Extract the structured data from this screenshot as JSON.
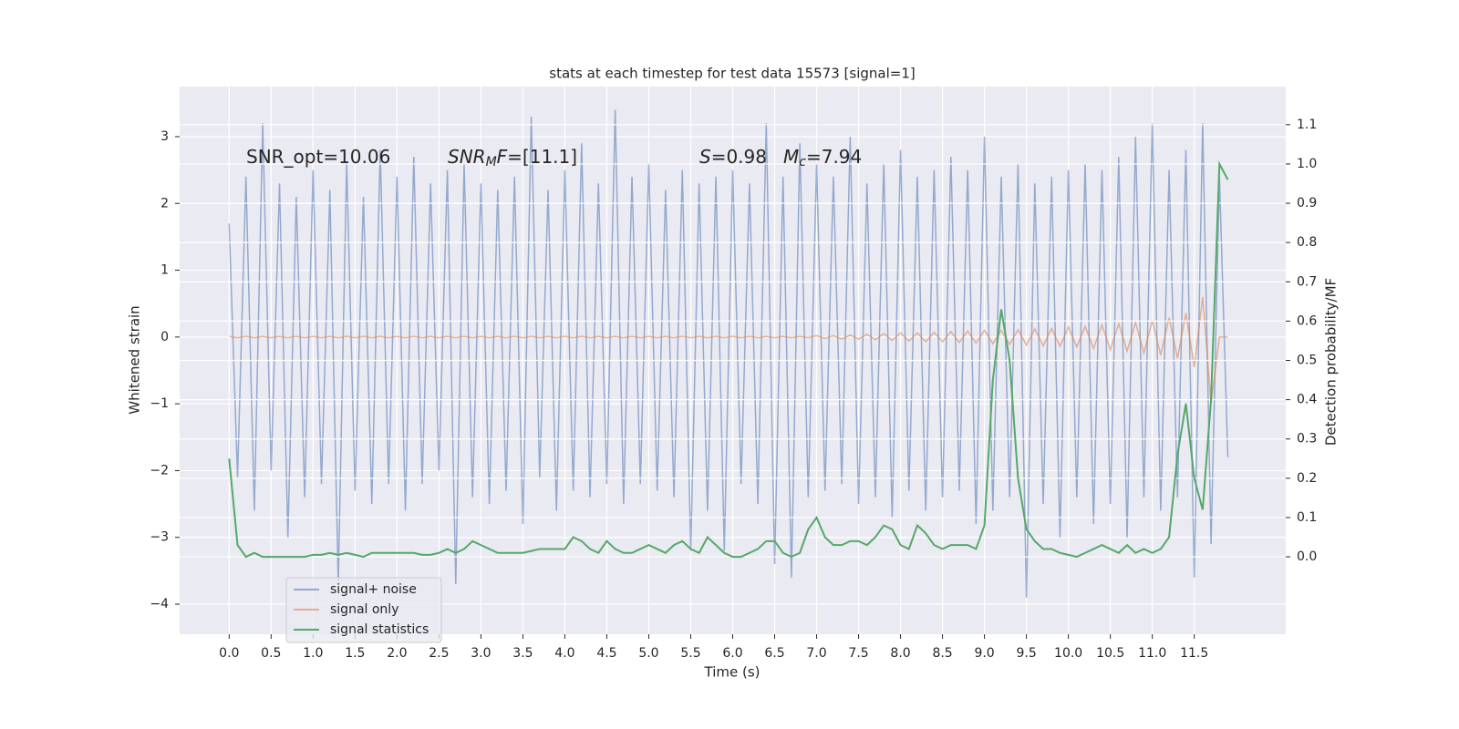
{
  "chart_data": {
    "type": "line",
    "title": "stats at each timestep for test data 15573 [signal=1]",
    "xlabel": "Time (s)",
    "ylabel": "Whitened strain",
    "y2label": "Detection probability/MF",
    "annotations": [
      [
        {
          "text": "SNR_opt=10.06",
          "style": "normal"
        }
      ],
      [
        {
          "text": "SNR",
          "style": "italic"
        },
        {
          "text": "M",
          "style": "sub"
        },
        {
          "text": "F",
          "style": "italic"
        },
        {
          "text": "=[11.1]",
          "style": "normal"
        }
      ],
      [
        {
          "text": "S",
          "style": "italic"
        },
        {
          "text": "=0.98",
          "style": "normal"
        }
      ],
      [
        {
          "text": "M",
          "style": "italic"
        },
        {
          "text": "c",
          "style": "sub"
        },
        {
          "text": "=7.94",
          "style": "normal"
        }
      ]
    ],
    "x": [
      0.0,
      0.1,
      0.2,
      0.3,
      0.4,
      0.5,
      0.6,
      0.7,
      0.8,
      0.9,
      1.0,
      1.1,
      1.2,
      1.3,
      1.4,
      1.5,
      1.6,
      1.7,
      1.8,
      1.9,
      2.0,
      2.1,
      2.2,
      2.3,
      2.4,
      2.5,
      2.6,
      2.7,
      2.8,
      2.9,
      3.0,
      3.1,
      3.2,
      3.3,
      3.4,
      3.5,
      3.6,
      3.7,
      3.8,
      3.9,
      4.0,
      4.1,
      4.2,
      4.3,
      4.4,
      4.5,
      4.6,
      4.7,
      4.8,
      4.9,
      5.0,
      5.1,
      5.2,
      5.3,
      5.4,
      5.5,
      5.6,
      5.7,
      5.8,
      5.9,
      6.0,
      6.1,
      6.2,
      6.3,
      6.4,
      6.5,
      6.6,
      6.7,
      6.8,
      6.9,
      7.0,
      7.1,
      7.2,
      7.3,
      7.4,
      7.5,
      7.6,
      7.7,
      7.8,
      7.9,
      8.0,
      8.1,
      8.2,
      8.3,
      8.4,
      8.5,
      8.6,
      8.7,
      8.8,
      8.9,
      9.0,
      9.1,
      9.2,
      9.3,
      9.4,
      9.5,
      9.6,
      9.7,
      9.8,
      9.9,
      10.0,
      10.1,
      10.2,
      10.3,
      10.4,
      10.5,
      10.6,
      10.7,
      10.8,
      10.9,
      11.0,
      11.1,
      11.2,
      11.3,
      11.4,
      11.5,
      11.6,
      11.7,
      11.8,
      11.9
    ],
    "series": [
      {
        "name": "signal+ noise",
        "color": "#4c72b0",
        "alpha": 0.55,
        "values": [
          1.7,
          -2.1,
          2.4,
          -2.6,
          3.2,
          -2.0,
          2.3,
          -3.0,
          2.1,
          -2.4,
          2.5,
          -2.2,
          2.2,
          -3.7,
          2.6,
          -2.3,
          2.1,
          -2.5,
          2.8,
          -2.2,
          2.4,
          -2.6,
          2.7,
          -2.2,
          2.3,
          -2.0,
          2.5,
          -3.7,
          2.6,
          -2.4,
          2.3,
          -2.5,
          2.2,
          -2.3,
          2.4,
          -2.8,
          3.3,
          -2.1,
          2.2,
          -2.6,
          2.5,
          -2.3,
          2.9,
          -2.4,
          2.3,
          -2.2,
          3.4,
          -2.5,
          2.4,
          -2.2,
          2.6,
          -2.3,
          2.2,
          -2.4,
          2.5,
          -3.2,
          2.3,
          -2.6,
          2.4,
          -3.2,
          2.5,
          -2.2,
          2.3,
          -2.5,
          3.2,
          -3.4,
          2.4,
          -3.6,
          2.9,
          -2.4,
          2.6,
          -2.3,
          2.4,
          -2.2,
          3.0,
          -2.5,
          2.3,
          -2.4,
          2.6,
          -2.7,
          2.8,
          -2.3,
          2.4,
          -2.6,
          2.5,
          -2.4,
          2.7,
          -2.3,
          2.5,
          -2.8,
          3.0,
          -2.6,
          2.4,
          -2.4,
          2.6,
          -3.9,
          2.3,
          -2.5,
          2.4,
          -3.0,
          2.5,
          -2.4,
          2.6,
          -2.8,
          2.5,
          -2.5,
          2.7,
          -3.0,
          3.0,
          -2.4,
          3.2,
          -2.6,
          2.5,
          -2.4,
          2.8,
          -3.6,
          3.2,
          -3.1,
          2.4,
          -1.8
        ]
      },
      {
        "name": "signal only",
        "color": "#dd8452",
        "alpha": 0.6,
        "values": [
          0.01,
          -0.01,
          0.01,
          -0.01,
          0.01,
          -0.01,
          0.01,
          -0.01,
          0.01,
          -0.01,
          0.01,
          -0.01,
          0.01,
          -0.01,
          0.01,
          -0.01,
          0.01,
          -0.01,
          0.01,
          -0.01,
          0.01,
          -0.01,
          0.01,
          -0.01,
          0.01,
          -0.01,
          0.01,
          -0.01,
          0.01,
          -0.01,
          0.01,
          -0.01,
          0.01,
          -0.01,
          0.01,
          -0.01,
          0.01,
          -0.01,
          0.01,
          -0.01,
          0.01,
          -0.01,
          0.01,
          -0.01,
          0.01,
          -0.01,
          0.01,
          -0.01,
          0.01,
          -0.01,
          0.01,
          -0.01,
          0.01,
          -0.01,
          0.01,
          -0.01,
          0.01,
          -0.01,
          0.01,
          -0.01,
          0.01,
          -0.01,
          0.01,
          -0.01,
          0.01,
          -0.01,
          0.01,
          -0.01,
          0.01,
          -0.01,
          0.02,
          -0.02,
          0.02,
          -0.03,
          0.03,
          -0.03,
          0.04,
          -0.04,
          0.05,
          -0.05,
          0.06,
          -0.06,
          0.06,
          -0.07,
          0.07,
          -0.07,
          0.08,
          -0.08,
          0.09,
          -0.09,
          0.1,
          -0.1,
          0.1,
          -0.11,
          0.11,
          -0.12,
          0.12,
          -0.13,
          0.13,
          -0.14,
          0.15,
          -0.15,
          0.16,
          -0.17,
          0.18,
          -0.19,
          0.2,
          -0.21,
          0.22,
          -0.24,
          0.25,
          -0.27,
          0.29,
          -0.32,
          0.36,
          -0.45,
          0.6,
          -1.0,
          0.0,
          0.0
        ]
      },
      {
        "name": "signal statistics",
        "color": "#55a868",
        "alpha": 1,
        "axis": "y2",
        "values": [
          0.25,
          0.03,
          0.0,
          0.01,
          0.0,
          0.0,
          0.0,
          0.0,
          0.0,
          0.0,
          0.005,
          0.005,
          0.01,
          0.005,
          0.01,
          0.005,
          0.0,
          0.01,
          0.01,
          0.01,
          0.01,
          0.01,
          0.01,
          0.005,
          0.005,
          0.01,
          0.02,
          0.01,
          0.02,
          0.04,
          0.03,
          0.02,
          0.01,
          0.01,
          0.01,
          0.01,
          0.015,
          0.02,
          0.02,
          0.02,
          0.02,
          0.05,
          0.04,
          0.02,
          0.01,
          0.04,
          0.02,
          0.01,
          0.01,
          0.02,
          0.03,
          0.02,
          0.01,
          0.03,
          0.04,
          0.02,
          0.01,
          0.05,
          0.03,
          0.01,
          0.0,
          0.0,
          0.01,
          0.02,
          0.04,
          0.04,
          0.01,
          0.0,
          0.01,
          0.07,
          0.1,
          0.05,
          0.03,
          0.03,
          0.04,
          0.04,
          0.03,
          0.05,
          0.08,
          0.07,
          0.03,
          0.02,
          0.08,
          0.06,
          0.03,
          0.02,
          0.03,
          0.03,
          0.03,
          0.02,
          0.08,
          0.45,
          0.63,
          0.5,
          0.2,
          0.07,
          0.04,
          0.02,
          0.02,
          0.01,
          0.005,
          0.0,
          0.01,
          0.02,
          0.03,
          0.02,
          0.01,
          0.03,
          0.01,
          0.02,
          0.01,
          0.02,
          0.05,
          0.26,
          0.39,
          0.2,
          0.12,
          0.4,
          1.0,
          0.96
        ]
      }
    ],
    "xlim": [
      -0.59,
      12.59
    ],
    "xticks": [
      {
        "value": 0,
        "label": "0.0"
      },
      0.5,
      {
        "value": 1,
        "label": "1.0"
      },
      1.5,
      {
        "value": 2,
        "label": "2.0"
      },
      2.5,
      {
        "value": 3,
        "label": "3.0"
      },
      3.5,
      {
        "value": 4,
        "label": "4.0"
      },
      4.5,
      {
        "value": 5,
        "label": "5.0"
      },
      5.5,
      {
        "value": 6,
        "label": "6.0"
      },
      6.5,
      {
        "value": 7,
        "label": "7.0"
      },
      7.5,
      {
        "value": 8,
        "label": "8.0"
      },
      8.5,
      {
        "value": 9,
        "label": "9.0"
      },
      9.5,
      {
        "value": 10,
        "label": "10.0"
      },
      10.5,
      {
        "value": 11,
        "label": "11.0"
      },
      11.5
    ],
    "ylim": [
      -4.45,
      3.75
    ],
    "yticks": [
      {
        "value": -4,
        "label": "−4"
      },
      {
        "value": -3,
        "label": "−3"
      },
      {
        "value": -2,
        "label": "−2"
      },
      {
        "value": -1,
        "label": "−1"
      },
      0,
      1,
      2,
      3
    ],
    "y2lim": [
      -0.197,
      1.197
    ],
    "y2ticks": [
      {
        "value": 0,
        "label": "0.0"
      },
      0.1,
      0.2,
      0.3,
      0.4,
      0.5,
      0.6,
      0.7,
      0.8,
      0.9,
      {
        "value": 1,
        "label": "1.0"
      },
      1.1
    ],
    "grid": true,
    "legend": "lower left"
  }
}
